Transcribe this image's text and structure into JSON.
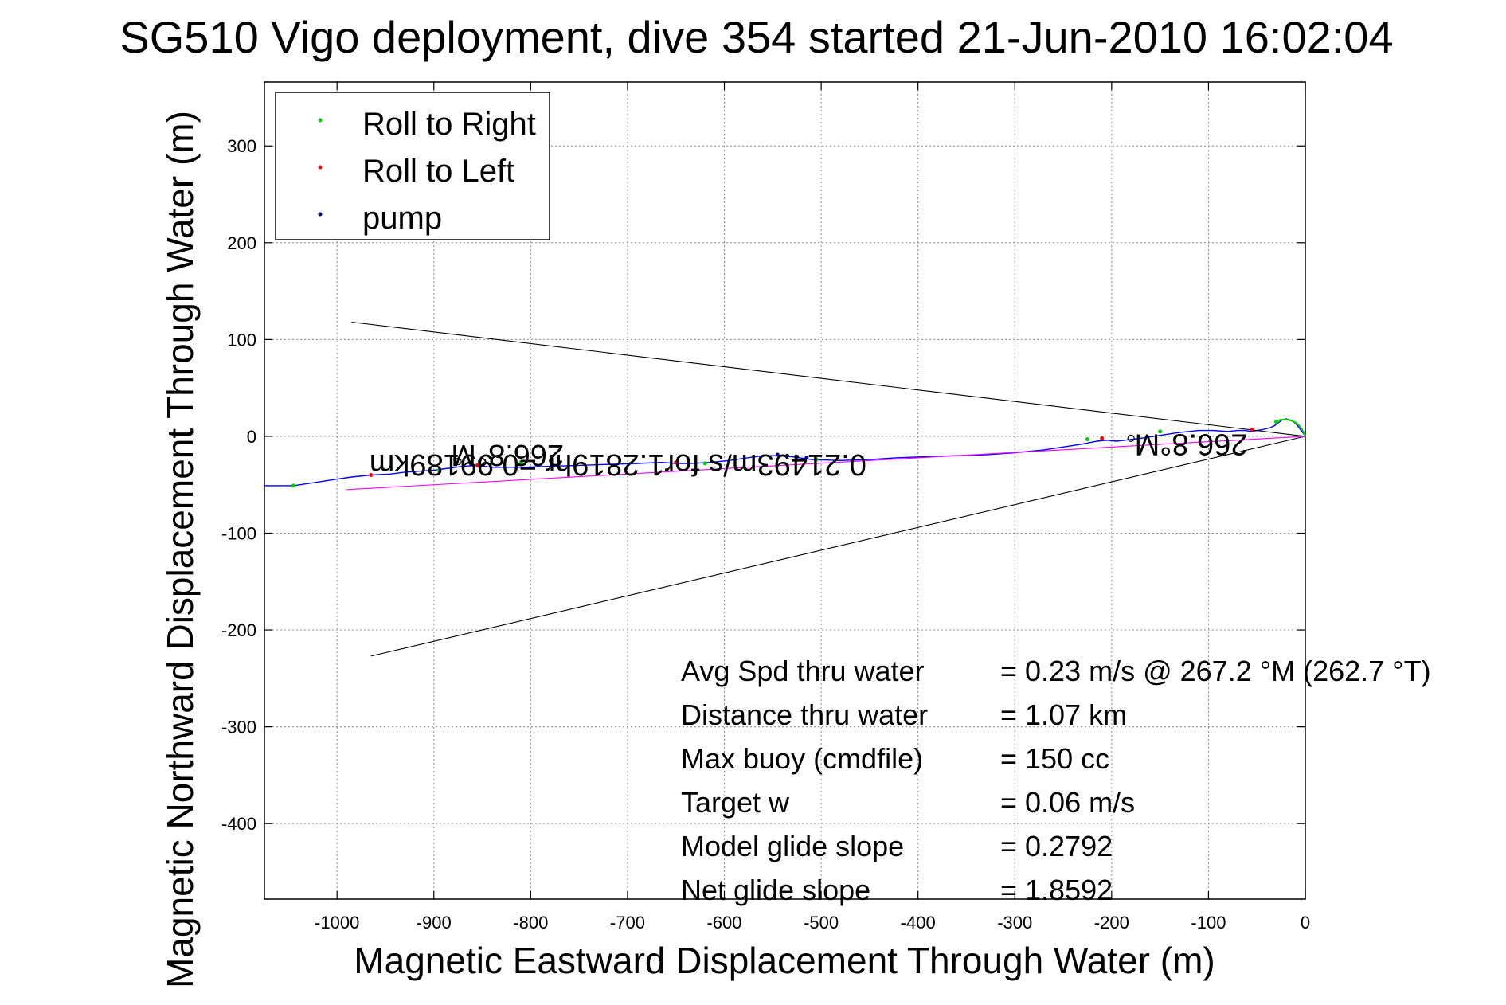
{
  "chart_data": {
    "type": "line",
    "title": "SG510 Vigo deployment, dive 354 started 21-Jun-2010 16:02:04",
    "xlabel": "Magnetic Eastward Displacement Through Water (m)",
    "ylabel": "Magnetic Northward Displacement Through Water (m)",
    "xlim": [
      -1075,
      0
    ],
    "ylim": [
      -478,
      366
    ],
    "xticks": [
      -1000,
      -900,
      -800,
      -700,
      -600,
      -500,
      -400,
      -300,
      -200,
      -100,
      0
    ],
    "yticks": [
      -400,
      -300,
      -200,
      -100,
      0,
      100,
      200,
      300
    ],
    "xtick_labels": [
      "-1000",
      "-900",
      "-800",
      "-700",
      "-600",
      "-500",
      "-400",
      "-300",
      "-200",
      "-100",
      "0"
    ],
    "ytick_labels": [
      "-400",
      "-300",
      "-200",
      "-100",
      "0",
      "100",
      "200",
      "300"
    ],
    "grid": true,
    "legend_position": "top-left",
    "legend": [
      {
        "label": "Roll to Right",
        "color": "#00cc00"
      },
      {
        "label": "Roll to Left",
        "color": "#ff0000"
      },
      {
        "label": "pump",
        "color": "#000080"
      }
    ],
    "series": [
      {
        "role": "track",
        "color": "#0000ff",
        "x": [
          0,
          -2,
          -5,
          -8,
          -12,
          -16,
          -20,
          -24,
          -28,
          -32,
          -36,
          -40,
          -44,
          -50,
          -56,
          -62,
          -70,
          -80,
          -95,
          -110,
          -130,
          -150,
          -170,
          -195,
          -205,
          -215,
          -230,
          -250,
          -270,
          -300,
          -330,
          -360,
          -390,
          -420,
          -450,
          -480,
          -510,
          -530,
          -545,
          -560,
          -575,
          -595,
          -615,
          -635,
          -650,
          -665,
          -690,
          -720,
          -750,
          -780,
          -810,
          -840,
          -855,
          -870,
          -885,
          -900,
          -915,
          -930,
          -945,
          -965,
          -985,
          -1005,
          -1025,
          -1045,
          -1075
        ],
        "y": [
          0,
          3,
          7,
          11,
          15,
          17,
          18,
          17,
          14,
          11,
          9,
          8,
          7,
          6,
          5,
          6,
          6,
          5,
          6,
          6,
          4,
          1,
          -2,
          -5,
          -4,
          -5,
          -8,
          -11,
          -14,
          -17,
          -19,
          -20,
          -21,
          -22,
          -24,
          -25,
          -24,
          -21,
          -20,
          -20,
          -22,
          -25,
          -27,
          -28,
          -28,
          -27,
          -28,
          -29,
          -30,
          -31,
          -32,
          -32,
          -30,
          -31,
          -33,
          -35,
          -36,
          -37,
          -39,
          -40,
          -42,
          -45,
          -48,
          -51,
          -51
        ]
      },
      {
        "role": "heading-line-north",
        "color": "#000000",
        "x": [
          0,
          -985
        ],
        "y": [
          0,
          118
        ]
      },
      {
        "role": "heading-line-south",
        "color": "#000000",
        "x": [
          0,
          -965
        ],
        "y": [
          0,
          -227
        ]
      },
      {
        "role": "net-displacement",
        "color": "#ff00ff",
        "x": [
          0,
          -990
        ],
        "y": [
          0,
          -55
        ]
      },
      {
        "role": "roll-right-dots",
        "color": "#00cc00",
        "x": [
          -1045,
          -895,
          -810,
          -620,
          -505,
          -225,
          -150,
          -30
        ],
        "y": [
          -51,
          -35,
          -27,
          -28,
          -24,
          -3,
          5,
          15
        ]
      },
      {
        "role": "roll-left-dots",
        "color": "#ff0000",
        "x": [
          -965,
          -855,
          -650,
          -210,
          -55
        ],
        "y": [
          -40,
          -30,
          -27,
          -2,
          7
        ]
      },
      {
        "role": "pump-dots",
        "color": "#000080",
        "x": [
          -545,
          -535,
          -525,
          -515
        ],
        "y": [
          -19,
          -20,
          -21,
          -22
        ]
      }
    ],
    "annotations": [
      {
        "text": "266.8°M",
        "x": -118,
        "y": 2,
        "rotation": 180
      },
      {
        "text": "266.8°M",
        "x": -824,
        "y": -9,
        "rotation": 180
      },
      {
        "text": "0.21493m/s for1.2819hr =0.99189km",
        "x": -710,
        "y": -19,
        "rotation": 180
      }
    ],
    "heading_markers": [
      {
        "x": -180,
        "y": -2
      },
      {
        "x": -875,
        "y": -26
      }
    ],
    "stats": [
      {
        "label": "Avg Spd thru water",
        "value": "=  0.23 m/s @ 267.2 °M (262.7 °T)"
      },
      {
        "label": "Distance thru water",
        "value": "=  1.07 km"
      },
      {
        "label": "Max buoy (cmdfile)",
        "value": "= 150 cc"
      },
      {
        "label": "Target w",
        "value": "= 0.06 m/s"
      },
      {
        "label": "Model glide slope",
        "value": "= 0.2792"
      },
      {
        "label": "Net glide slope",
        "value": "= 1.8592"
      }
    ]
  }
}
